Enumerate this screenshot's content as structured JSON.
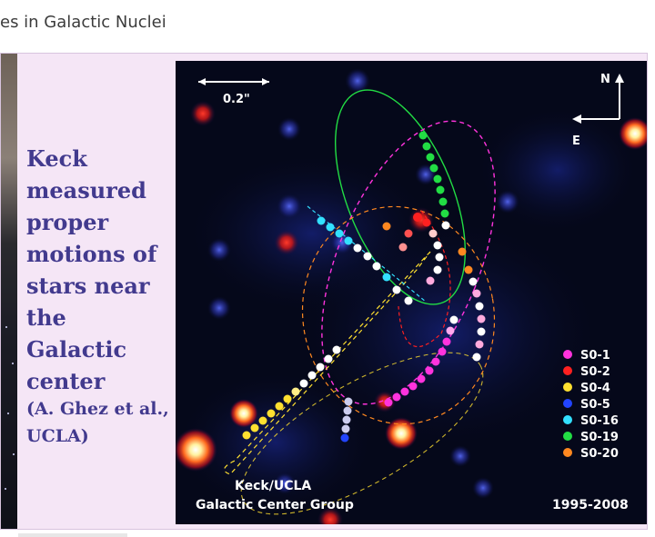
{
  "page": {
    "title": "es in Galactic Nuclei"
  },
  "slide": {
    "text_lines": [
      "Keck",
      "measured",
      "proper",
      "motions of",
      "stars near",
      "the Galactic",
      "center"
    ],
    "credit_lines": [
      "(A. Ghez et al.,",
      "UCLA)"
    ]
  },
  "figure": {
    "scale_label": "0.2\"",
    "compass": {
      "north": "N",
      "east": "E"
    },
    "group_lines": [
      "Keck/UCLA",
      "Galactic Center Group"
    ],
    "years": "1995-2008",
    "legend": [
      {
        "name": "S0-1",
        "color": "#ff33dd"
      },
      {
        "name": "S0-2",
        "color": "#ff2020"
      },
      {
        "name": "S0-4",
        "color": "#ffe030"
      },
      {
        "name": "S0-5",
        "color": "#2244ff"
      },
      {
        "name": "S0-16",
        "color": "#33e0ff"
      },
      {
        "name": "S0-19",
        "color": "#22dd44"
      },
      {
        "name": "S0-20",
        "color": "#ff8820"
      }
    ]
  }
}
